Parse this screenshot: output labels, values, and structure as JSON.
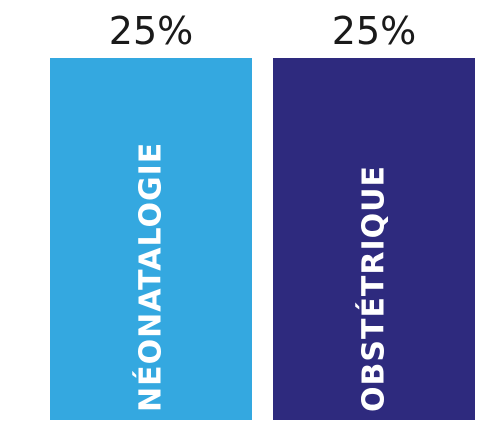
{
  "chart_data": {
    "type": "bar",
    "categories": [
      "NÉONATALOGIE",
      "OBSTÉTRIQUE"
    ],
    "values": [
      25,
      25
    ],
    "value_labels": [
      "25%",
      "25%"
    ],
    "colors": [
      "#34A8E0",
      "#2E2A7E"
    ]
  }
}
